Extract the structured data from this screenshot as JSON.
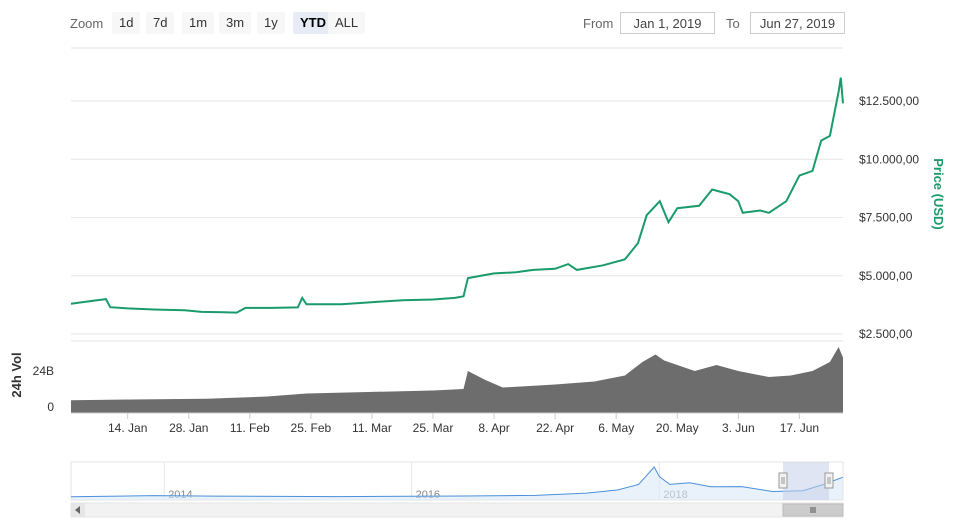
{
  "toolbar": {
    "zoom_label": "Zoom",
    "zoom_buttons": [
      "1d",
      "7d",
      "1m",
      "3m",
      "1y",
      "YTD",
      "ALL"
    ],
    "active_zoom": "YTD",
    "from_label": "From",
    "from_value": "Jan 1, 2019",
    "to_label": "To",
    "to_value": "Jun 27, 2019"
  },
  "colors": {
    "price_line": "#1a9b6b",
    "volume_fill": "#6d6d6d",
    "navigator_line": "#4a90d9",
    "navigator_fill": "#dbeaf7",
    "navigator_mask": "#c4d0e8"
  },
  "chart_data": {
    "type": "line",
    "price_axis": {
      "title": "Price (USD)",
      "ticks": [
        "$2.500,00",
        "$5.000,00",
        "$7.500,00",
        "$10.000,00",
        "$12.500,00"
      ],
      "tick_values": [
        2500,
        5000,
        7500,
        10000,
        12500
      ]
    },
    "volume_axis": {
      "title": "24h Vol",
      "ticks": [
        "0",
        "24B"
      ],
      "tick_values": [
        0,
        24
      ]
    },
    "x_ticks": [
      "14. Jan",
      "28. Jan",
      "11. Feb",
      "25. Feb",
      "11. Mar",
      "25. Mar",
      "8. Apr",
      "22. Apr",
      "6. May",
      "20. May",
      "3. Jun",
      "17. Jun"
    ],
    "x_tick_dates": [
      "2019-01-14",
      "2019-01-28",
      "2019-02-11",
      "2019-02-25",
      "2019-03-11",
      "2019-03-25",
      "2019-04-08",
      "2019-04-22",
      "2019-05-06",
      "2019-05-20",
      "2019-06-03",
      "2019-06-17"
    ],
    "x_range": [
      "2019-01-01",
      "2019-06-27"
    ],
    "series": [
      {
        "kind": "price",
        "points": [
          [
            "2019-01-01",
            3800
          ],
          [
            "2019-01-05",
            3900
          ],
          [
            "2019-01-09",
            4000
          ],
          [
            "2019-01-10",
            3650
          ],
          [
            "2019-01-14",
            3600
          ],
          [
            "2019-01-20",
            3550
          ],
          [
            "2019-01-27",
            3520
          ],
          [
            "2019-01-31",
            3450
          ],
          [
            "2019-02-05",
            3430
          ],
          [
            "2019-02-08",
            3420
          ],
          [
            "2019-02-10",
            3620
          ],
          [
            "2019-02-16",
            3620
          ],
          [
            "2019-02-22",
            3640
          ],
          [
            "2019-02-23",
            4050
          ],
          [
            "2019-02-24",
            3780
          ],
          [
            "2019-03-04",
            3780
          ],
          [
            "2019-03-10",
            3850
          ],
          [
            "2019-03-18",
            3950
          ],
          [
            "2019-03-25",
            3980
          ],
          [
            "2019-03-30",
            4050
          ],
          [
            "2019-04-01",
            4120
          ],
          [
            "2019-04-02",
            4900
          ],
          [
            "2019-04-08",
            5100
          ],
          [
            "2019-04-13",
            5150
          ],
          [
            "2019-04-17",
            5250
          ],
          [
            "2019-04-22",
            5300
          ],
          [
            "2019-04-25",
            5500
          ],
          [
            "2019-04-27",
            5250
          ],
          [
            "2019-05-03",
            5450
          ],
          [
            "2019-05-08",
            5700
          ],
          [
            "2019-05-11",
            6400
          ],
          [
            "2019-05-13",
            7600
          ],
          [
            "2019-05-16",
            8200
          ],
          [
            "2019-05-18",
            7300
          ],
          [
            "2019-05-20",
            7900
          ],
          [
            "2019-05-25",
            8000
          ],
          [
            "2019-05-28",
            8700
          ],
          [
            "2019-05-30",
            8600
          ],
          [
            "2019-06-01",
            8500
          ],
          [
            "2019-06-03",
            8200
          ],
          [
            "2019-06-04",
            7700
          ],
          [
            "2019-06-08",
            7800
          ],
          [
            "2019-06-10",
            7700
          ],
          [
            "2019-06-14",
            8200
          ],
          [
            "2019-06-17",
            9300
          ],
          [
            "2019-06-20",
            9500
          ],
          [
            "2019-06-22",
            10800
          ],
          [
            "2019-06-24",
            11000
          ],
          [
            "2019-06-26",
            12900
          ],
          [
            "2019-06-26T12",
            13500
          ],
          [
            "2019-06-27",
            12400
          ]
        ]
      },
      {
        "kind": "volume",
        "unit": "B",
        "points": [
          [
            "2019-01-01",
            4.5
          ],
          [
            "2019-01-15",
            5
          ],
          [
            "2019-02-01",
            5.5
          ],
          [
            "2019-02-15",
            7
          ],
          [
            "2019-02-24",
            9
          ],
          [
            "2019-03-10",
            10
          ],
          [
            "2019-03-25",
            11
          ],
          [
            "2019-04-01",
            12
          ],
          [
            "2019-04-02",
            24
          ],
          [
            "2019-04-06",
            18
          ],
          [
            "2019-04-10",
            13
          ],
          [
            "2019-04-22",
            15
          ],
          [
            "2019-05-01",
            17
          ],
          [
            "2019-05-08",
            21
          ],
          [
            "2019-05-12",
            30
          ],
          [
            "2019-05-15",
            35
          ],
          [
            "2019-05-17",
            31
          ],
          [
            "2019-05-24",
            24
          ],
          [
            "2019-05-29",
            28
          ],
          [
            "2019-06-03",
            24
          ],
          [
            "2019-06-10",
            20
          ],
          [
            "2019-06-15",
            21
          ],
          [
            "2019-06-20",
            24
          ],
          [
            "2019-06-24",
            30
          ],
          [
            "2019-06-26",
            40
          ],
          [
            "2019-06-27",
            33
          ]
        ]
      }
    ],
    "navigator": {
      "ticks": [
        "2014",
        "2016",
        "2018"
      ],
      "points": [
        [
          "2013-04",
          150
        ],
        [
          "2013-12",
          900
        ],
        [
          "2014-06",
          600
        ],
        [
          "2015-06",
          250
        ],
        [
          "2016-06",
          650
        ],
        [
          "2017-01",
          1000
        ],
        [
          "2017-06",
          2500
        ],
        [
          "2017-09",
          4500
        ],
        [
          "2017-11",
          8000
        ],
        [
          "2017-12-17",
          19000
        ],
        [
          "2018-01",
          13000
        ],
        [
          "2018-02",
          8000
        ],
        [
          "2018-04",
          9000
        ],
        [
          "2018-06",
          6500
        ],
        [
          "2018-09",
          6600
        ],
        [
          "2018-11",
          4500
        ],
        [
          "2018-12",
          3500
        ],
        [
          "2019-03",
          4000
        ],
        [
          "2019-05",
          8000
        ],
        [
          "2019-06-26",
          12500
        ]
      ],
      "selection": [
        "2019-01-01",
        "2019-06-27"
      ]
    }
  }
}
